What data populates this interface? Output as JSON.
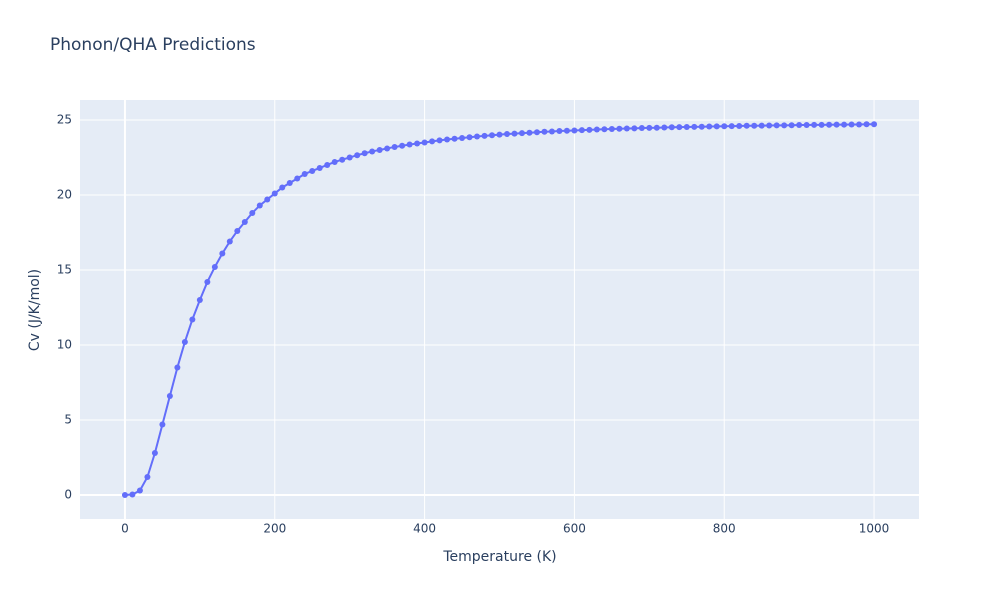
{
  "chart_data": {
    "type": "line",
    "title": "Phonon/QHA Predictions",
    "x_label": "Temperature (K)",
    "y_label": "Cv (J/K/mol)",
    "x": [
      0,
      10,
      20,
      30,
      40,
      50,
      60,
      70,
      80,
      90,
      100,
      110,
      120,
      130,
      140,
      150,
      160,
      170,
      180,
      190,
      200,
      210,
      220,
      230,
      240,
      250,
      260,
      270,
      280,
      290,
      300,
      310,
      320,
      330,
      340,
      350,
      360,
      370,
      380,
      390,
      400,
      410,
      420,
      430,
      440,
      450,
      460,
      470,
      480,
      490,
      500,
      510,
      520,
      530,
      540,
      550,
      560,
      570,
      580,
      590,
      600,
      610,
      620,
      630,
      640,
      650,
      660,
      670,
      680,
      690,
      700,
      710,
      720,
      730,
      740,
      750,
      760,
      770,
      780,
      790,
      800,
      810,
      820,
      830,
      840,
      850,
      860,
      870,
      880,
      890,
      900,
      910,
      920,
      930,
      940,
      950,
      960,
      970,
      980,
      990,
      1000
    ],
    "series": [
      {
        "name": "Cv",
        "color": "#636efa",
        "values": [
          0,
          0.03,
          0.3,
          1.2,
          2.8,
          4.7,
          6.6,
          8.5,
          10.2,
          11.7,
          13.0,
          14.2,
          15.2,
          16.1,
          16.9,
          17.6,
          18.2,
          18.8,
          19.3,
          19.7,
          20.1,
          20.5,
          20.8,
          21.1,
          21.4,
          21.6,
          21.8,
          22.0,
          22.2,
          22.35,
          22.5,
          22.65,
          22.78,
          22.9,
          23.0,
          23.1,
          23.2,
          23.28,
          23.36,
          23.43,
          23.5,
          23.57,
          23.64,
          23.7,
          23.75,
          23.8,
          23.85,
          23.9,
          23.94,
          23.98,
          24.02,
          24.06,
          24.09,
          24.12,
          24.15,
          24.18,
          24.21,
          24.23,
          24.26,
          24.28,
          24.3,
          24.32,
          24.34,
          24.36,
          24.38,
          24.4,
          24.41,
          24.43,
          24.44,
          24.46,
          24.47,
          24.48,
          24.5,
          24.51,
          24.52,
          24.53,
          24.54,
          24.55,
          24.56,
          24.57,
          24.58,
          24.59,
          24.6,
          24.61,
          24.61,
          24.62,
          24.63,
          24.64,
          24.64,
          24.65,
          24.66,
          24.66,
          24.67,
          24.67,
          24.68,
          24.69,
          24.69,
          24.7,
          24.7,
          24.71,
          24.71
        ]
      }
    ],
    "xlim": [
      -60,
      1060
    ],
    "ylim": [
      -1.6,
      26.33
    ],
    "xticks": [
      0,
      200,
      400,
      600,
      800,
      1000
    ],
    "yticks": [
      0,
      5,
      10,
      15,
      20,
      25
    ],
    "grid": true,
    "background": "#e5ecf6"
  }
}
